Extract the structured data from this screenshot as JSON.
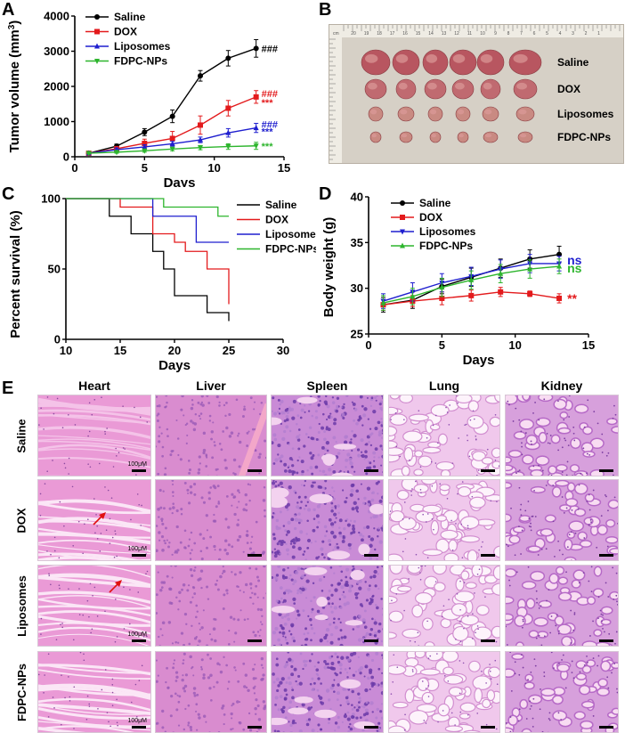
{
  "panel_labels": [
    "A",
    "B",
    "C",
    "D",
    "E"
  ],
  "chart_data": [
    {
      "id": "A",
      "type": "line",
      "xlabel": "Days",
      "ylabel": "Tumor volume (mm3)",
      "xlim": [
        0,
        15
      ],
      "ylim": [
        0,
        4000
      ],
      "xticks": [
        0,
        5,
        10,
        15
      ],
      "yticks": [
        0,
        1000,
        2000,
        3000,
        4000
      ],
      "x": [
        1,
        3,
        5,
        7,
        9,
        11,
        13
      ],
      "series": [
        {
          "name": "Saline",
          "color": "#000000",
          "marker": "circle",
          "values": [
            100,
            300,
            700,
            1150,
            2300,
            2800,
            3080
          ],
          "errors": [
            30,
            60,
            100,
            180,
            150,
            220,
            250
          ]
        },
        {
          "name": "DOX",
          "color": "#e31a1c",
          "marker": "square",
          "values": [
            100,
            230,
            380,
            520,
            900,
            1380,
            1700
          ],
          "errors": [
            30,
            60,
            120,
            200,
            260,
            220,
            180
          ]
        },
        {
          "name": "Liposomes",
          "color": "#1f1fcf",
          "marker": "triangle-up",
          "values": [
            100,
            200,
            280,
            370,
            480,
            680,
            820
          ],
          "errors": [
            30,
            50,
            60,
            70,
            80,
            120,
            130
          ]
        },
        {
          "name": "FDPC-NPs",
          "color": "#2db52d",
          "marker": "triangle-down",
          "values": [
            100,
            130,
            170,
            220,
            260,
            290,
            310
          ],
          "errors": [
            20,
            30,
            40,
            50,
            60,
            80,
            100
          ]
        }
      ],
      "annotations": [
        {
          "text": "###",
          "color": "#000000",
          "at": 3080
        },
        {
          "text": "###",
          "color": "#e31a1c",
          "at": 1800
        },
        {
          "text": "***",
          "color": "#e31a1c",
          "at": 1550
        },
        {
          "text": "###",
          "color": "#1f1fcf",
          "at": 920
        },
        {
          "text": "***",
          "color": "#1f1fcf",
          "at": 720
        },
        {
          "text": "***",
          "color": "#2db52d",
          "at": 300
        }
      ]
    },
    {
      "id": "C",
      "type": "line",
      "subtype": "step",
      "xlabel": "Days",
      "ylabel": "Percent survival (%)",
      "xlim": [
        10,
        30
      ],
      "ylim": [
        0,
        100
      ],
      "xticks": [
        10,
        15,
        20,
        25,
        30
      ],
      "yticks": [
        0,
        50,
        100
      ],
      "series": [
        {
          "name": "Saline",
          "color": "#000000",
          "points": [
            [
              10,
              100
            ],
            [
              14,
              100
            ],
            [
              14,
              87.5
            ],
            [
              16,
              87.5
            ],
            [
              16,
              75
            ],
            [
              18,
              75
            ],
            [
              18,
              62.5
            ],
            [
              19,
              62.5
            ],
            [
              19,
              50
            ],
            [
              20,
              50
            ],
            [
              20,
              31
            ],
            [
              23,
              31
            ],
            [
              23,
              19
            ],
            [
              25,
              19
            ],
            [
              25,
              13
            ]
          ]
        },
        {
          "name": "DOX",
          "color": "#e31a1c",
          "points": [
            [
              10,
              100
            ],
            [
              15,
              100
            ],
            [
              15,
              94
            ],
            [
              18,
              94
            ],
            [
              18,
              75
            ],
            [
              20,
              75
            ],
            [
              20,
              69
            ],
            [
              21,
              69
            ],
            [
              21,
              62.5
            ],
            [
              23,
              62.5
            ],
            [
              23,
              50
            ],
            [
              25,
              50
            ],
            [
              25,
              25
            ]
          ]
        },
        {
          "name": "Liposomes",
          "color": "#1f1fcf",
          "points": [
            [
              10,
              100
            ],
            [
              18,
              100
            ],
            [
              18,
              87.5
            ],
            [
              22,
              87.5
            ],
            [
              22,
              69
            ],
            [
              25,
              69
            ]
          ]
        },
        {
          "name": "FDPC-NPs",
          "color": "#2db52d",
          "points": [
            [
              10,
              100
            ],
            [
              19,
              100
            ],
            [
              19,
              94
            ],
            [
              24,
              94
            ],
            [
              24,
              87.5
            ],
            [
              25,
              87.5
            ]
          ]
        }
      ]
    },
    {
      "id": "D",
      "type": "line",
      "xlabel": "Days",
      "ylabel": "Body weight (g)",
      "xlim": [
        0,
        15
      ],
      "ylim": [
        25,
        40
      ],
      "xticks": [
        0,
        5,
        10,
        15
      ],
      "yticks": [
        25,
        30,
        35,
        40
      ],
      "x": [
        1,
        3,
        5,
        7,
        9,
        11,
        13
      ],
      "series": [
        {
          "name": "Saline",
          "color": "#000000",
          "marker": "circle",
          "values": [
            28.2,
            28.7,
            30.2,
            31.2,
            32.2,
            33.2,
            33.7
          ],
          "errors": [
            0.8,
            0.9,
            0.8,
            1.0,
            1.0,
            1.0,
            0.9
          ]
        },
        {
          "name": "DOX",
          "color": "#e31a1c",
          "marker": "square",
          "values": [
            28.2,
            28.6,
            28.9,
            29.2,
            29.6,
            29.4,
            28.9
          ],
          "errors": [
            0.6,
            0.6,
            0.7,
            0.6,
            0.5,
            0.3,
            0.5
          ]
        },
        {
          "name": "Liposomes",
          "color": "#1f1fcf",
          "marker": "triangle-down",
          "values": [
            28.6,
            29.6,
            30.6,
            31.3,
            32.1,
            32.7,
            32.7
          ],
          "errors": [
            0.8,
            1.0,
            1.0,
            1.0,
            1.0,
            1.0,
            0.8
          ]
        },
        {
          "name": "FDPC-NPs",
          "color": "#2db52d",
          "marker": "triangle-up",
          "values": [
            28.4,
            29.1,
            30.1,
            30.9,
            31.6,
            32.1,
            32.4
          ],
          "errors": [
            0.8,
            0.9,
            1.0,
            1.0,
            1.0,
            1.0,
            0.8
          ]
        }
      ],
      "annotations": [
        {
          "text": "ns",
          "color": "#1f1fcf",
          "at": 33.1
        },
        {
          "text": "ns",
          "color": "#2db52d",
          "at": 32.2
        },
        {
          "text": "**",
          "color": "#e31a1c",
          "at": 28.9
        }
      ]
    }
  ],
  "panel_b": {
    "groups": [
      "Saline",
      "DOX",
      "Liposomes",
      "FDPC-NPs"
    ],
    "tumor_counts": [
      6,
      6,
      6,
      6
    ],
    "ruler_numbers": [
      "20",
      "19",
      "18",
      "17",
      "16",
      "15",
      "14",
      "13",
      "12",
      "11",
      "10",
      "9",
      "8",
      "7",
      "6",
      "5",
      "4",
      "3",
      "2",
      "1"
    ],
    "ruler_unit": "cm"
  },
  "panel_e": {
    "columns": [
      "Heart",
      "Liver",
      "Spleen",
      "Lung",
      "Kidney"
    ],
    "rows": [
      "Saline",
      "DOX",
      "Liposomes",
      "FDPC-NPs"
    ],
    "scale_label": "100μM"
  },
  "colors": {
    "saline": "#000000",
    "dox": "#e31a1c",
    "liposomes": "#1f1fcf",
    "fdpc": "#2db52d",
    "he_pink": "#e690cc",
    "he_purple": "#8c4fb0"
  }
}
